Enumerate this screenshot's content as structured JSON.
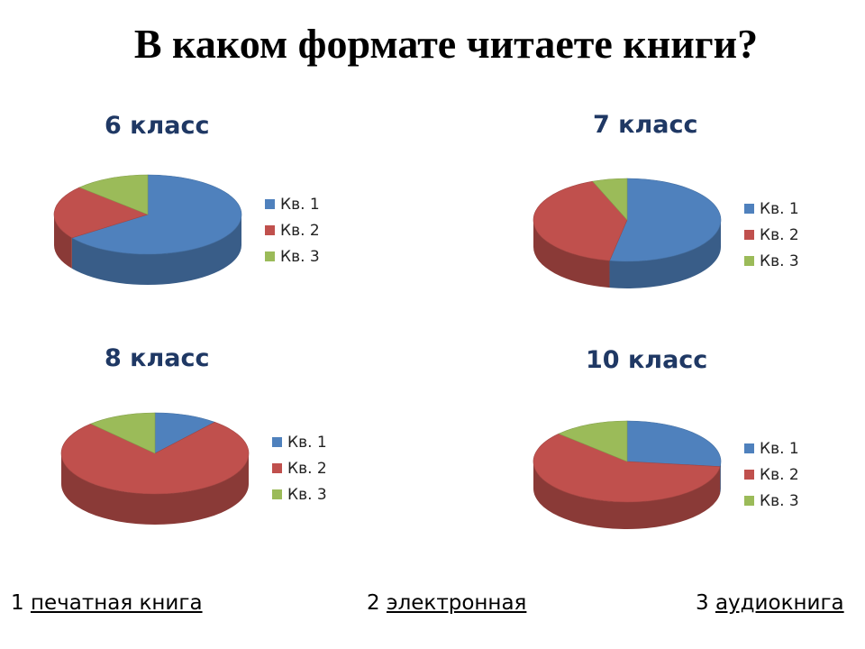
{
  "title": "В каком формате читаете книги?",
  "colors": {
    "series1": "#4f81bd",
    "series2": "#c0504d",
    "series3": "#9bbb59"
  },
  "chart_data": [
    {
      "type": "pie",
      "title": "6 класс",
      "categories": [
        "Кв. 1",
        "Кв. 2",
        "Кв. 3"
      ],
      "values": [
        65,
        22,
        13
      ],
      "legend": "right"
    },
    {
      "type": "pie",
      "title": "7 класс",
      "categories": [
        "Кв. 1",
        "Кв. 2",
        "Кв. 3"
      ],
      "values": [
        53,
        41,
        6
      ],
      "legend": "right"
    },
    {
      "type": "pie",
      "title": "8 класс",
      "categories": [
        "Кв. 1",
        "Кв. 2",
        "Кв. 3"
      ],
      "values": [
        11,
        77,
        12
      ],
      "legend": "right"
    },
    {
      "type": "pie",
      "title": "10 класс",
      "categories": [
        "Кв. 1",
        "Кв. 2",
        "Кв. 3"
      ],
      "values": [
        27,
        60,
        13
      ],
      "legend": "right"
    }
  ],
  "footer": [
    {
      "number": "1",
      "label": "печатная книга"
    },
    {
      "number": "2",
      "label": "электронная"
    },
    {
      "number": "3",
      "label": "аудиокнига"
    }
  ]
}
